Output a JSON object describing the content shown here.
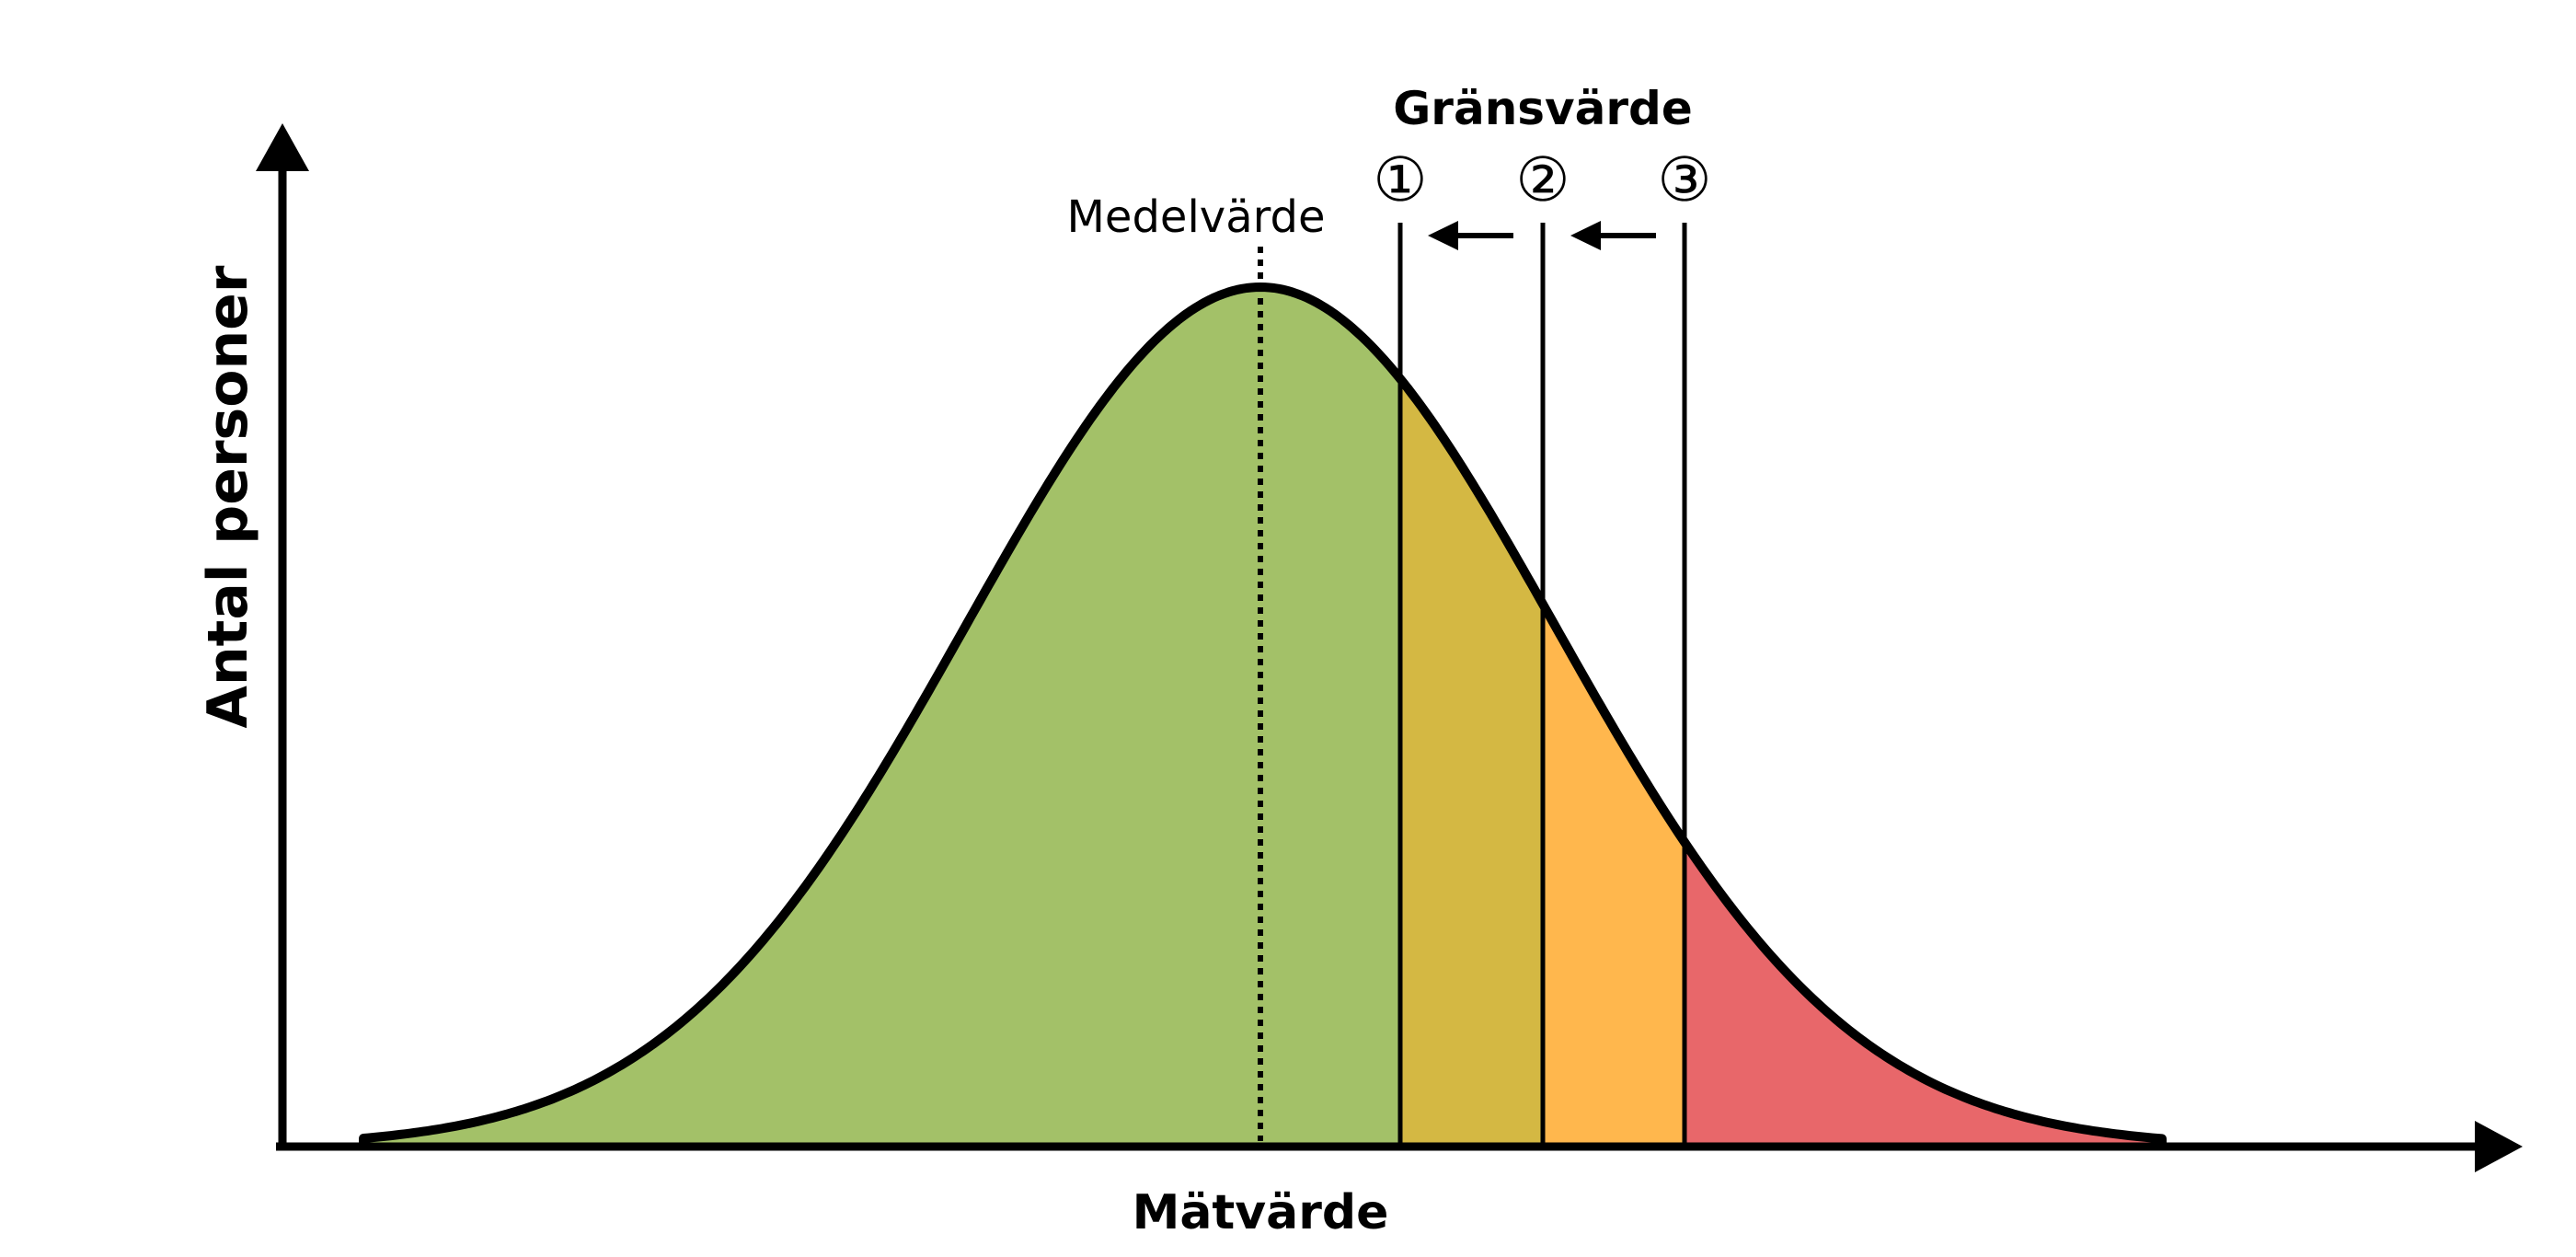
{
  "labels": {
    "y_axis": "Antal personer",
    "x_axis": "Mätvärde",
    "mean": "Medelvärde",
    "threshold_title": "Gränsvärde"
  },
  "thresholds": [
    {
      "label": "①",
      "color": "#d4b843"
    },
    {
      "label": "②",
      "color": "#ffb74d"
    },
    {
      "label": "③",
      "color": "#e8676a"
    }
  ],
  "colors": {
    "base_fill": "#a3c168",
    "line": "#000000"
  }
}
